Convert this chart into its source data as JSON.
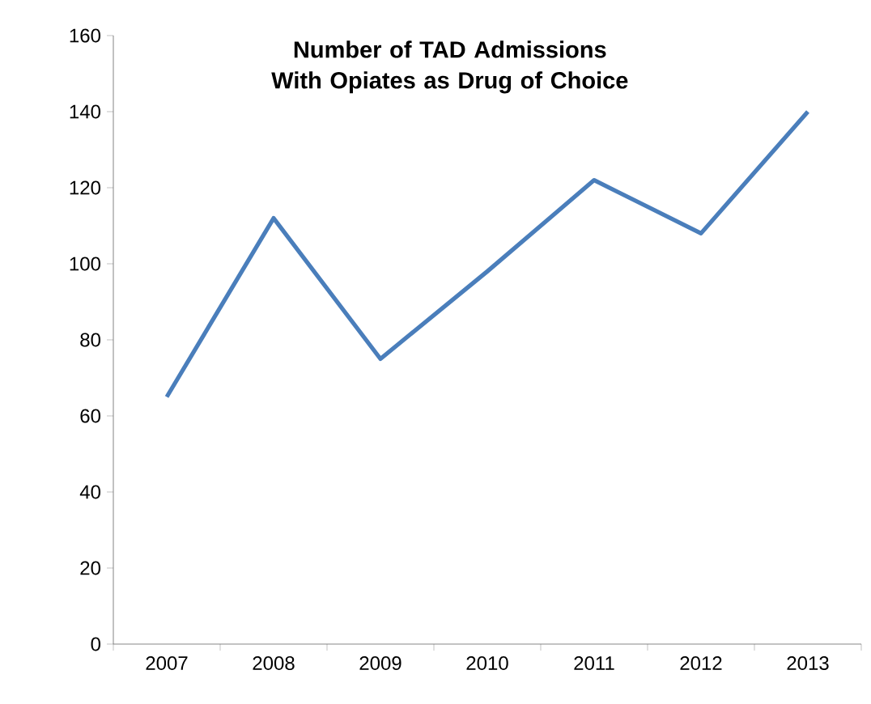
{
  "chart_data": {
    "type": "line",
    "title": "Number of TAD Admissions With Opiates as Drug of Choice",
    "categories": [
      "2007",
      "2008",
      "2009",
      "2010",
      "2011",
      "2012",
      "2013"
    ],
    "series": [
      {
        "color": "#4a7ebb",
        "values": [
          65,
          112,
          75,
          98,
          122,
          108,
          140
        ]
      }
    ],
    "ylim": [
      0,
      160
    ],
    "yticks": [
      0,
      20,
      40,
      60,
      80,
      100,
      120,
      140,
      160
    ],
    "grid": false,
    "marker": "none",
    "line_style": "solid"
  }
}
